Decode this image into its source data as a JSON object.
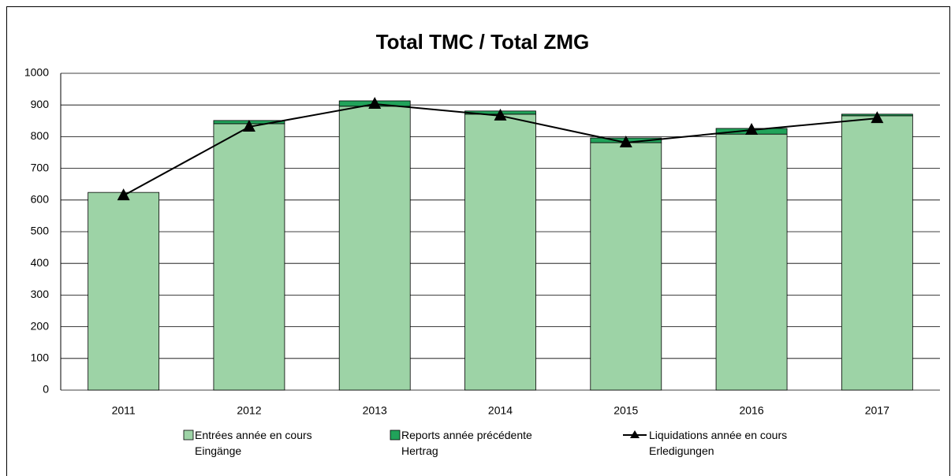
{
  "chart_data": {
    "type": "bar",
    "title": "Total TMC / Total ZMG",
    "categories": [
      "2011",
      "2012",
      "2013",
      "2014",
      "2015",
      "2016",
      "2017"
    ],
    "series": [
      {
        "name": "Entrées année en cours\nEingänge",
        "color": "#9dd3a6",
        "type": "bar",
        "values": [
          624,
          841,
          896,
          871,
          781,
          808,
          866
        ]
      },
      {
        "name": "Reports année précédente\nHertrag",
        "color": "#21a35a",
        "type": "bar",
        "values": [
          0,
          10,
          17,
          10,
          15,
          18,
          5
        ]
      },
      {
        "name": "Liquidations année en cours\nErledigungen",
        "color": "#000000",
        "type": "line",
        "values": [
          614,
          831,
          903,
          866,
          781,
          821,
          858
        ]
      }
    ],
    "ylim": [
      0,
      1000
    ],
    "yticks": [
      0,
      100,
      200,
      300,
      400,
      500,
      600,
      700,
      800,
      900,
      1000
    ],
    "grid": true,
    "stacked": true
  }
}
